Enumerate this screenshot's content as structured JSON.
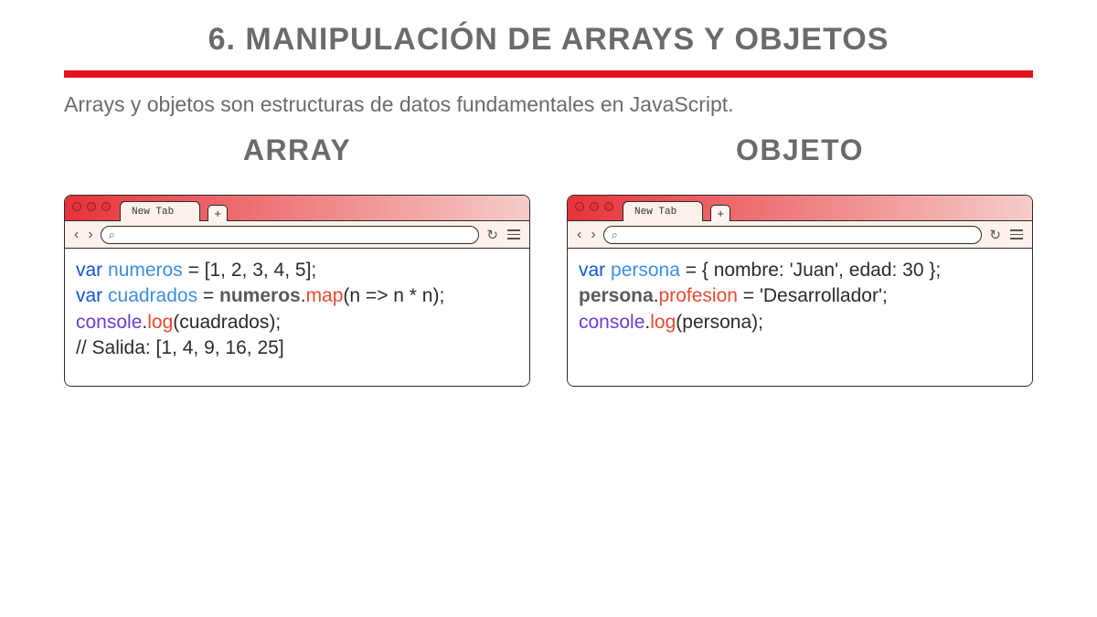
{
  "colors": {
    "accent_red": "#e8121b",
    "text_gray": "#6b6b6b",
    "border_dark": "#2b2b2b",
    "tabbar_gradient_start": "#e8323a",
    "tabbar_gradient_end": "#f6cdc8",
    "toolbar_bg": "#fdf1eb",
    "dot_fill": "#e8323a",
    "syntax_keyword": "#1256d4",
    "syntax_variable": "#3d8fe0",
    "syntax_function": "#e84a2e",
    "syntax_object": "#6b3fd1",
    "syntax_bold": "#5a5a5a"
  },
  "typography": {
    "title_fontsize": 34,
    "subtitle_fontsize": 23,
    "col_title_fontsize": 32,
    "code_fontsize": 21
  },
  "header": {
    "title": "6. MANIPULACIÓN DE ARRAYS Y OBJETOS",
    "subtitle": "Arrays y objetos son estructuras de datos fundamentales en JavaScript."
  },
  "columns": {
    "left": {
      "title": "ARRAY"
    },
    "right": {
      "title": "OBJETO"
    }
  },
  "browser_chrome": {
    "tab_label": "New Tab",
    "plus_label": "+",
    "back_glyph": "‹",
    "fwd_glyph": "›",
    "reload_glyph": "↻",
    "search_glyph": "⌕"
  },
  "code_left": {
    "lines": [
      [
        {
          "t": "var ",
          "cls": "kw"
        },
        {
          "t": "numeros ",
          "cls": "ident"
        },
        {
          "t": "= [1, 2, 3, 4, 5];",
          "cls": ""
        }
      ],
      [
        {
          "t": "var ",
          "cls": "kw"
        },
        {
          "t": "cuadrados ",
          "cls": "ident"
        },
        {
          "t": "= ",
          "cls": ""
        },
        {
          "t": "numeros",
          "cls": "bold"
        },
        {
          "t": ".",
          "cls": ""
        },
        {
          "t": "map",
          "cls": "fn"
        },
        {
          "t": "(n => n * n);",
          "cls": ""
        }
      ],
      [
        {
          "t": "console",
          "cls": "obj"
        },
        {
          "t": ".",
          "cls": ""
        },
        {
          "t": "log",
          "cls": "fn"
        },
        {
          "t": "(cuadrados);",
          "cls": ""
        }
      ],
      [
        {
          "t": " // Salida: [1, 4, 9, 16, 25]",
          "cls": "cmt"
        }
      ]
    ]
  },
  "code_right": {
    "lines": [
      [
        {
          "t": "var ",
          "cls": "kw"
        },
        {
          "t": "persona ",
          "cls": "ident"
        },
        {
          "t": "= { nombre: 'Juan', edad: 30 };",
          "cls": ""
        }
      ],
      [
        {
          "t": "persona",
          "cls": "bold"
        },
        {
          "t": ".",
          "cls": ""
        },
        {
          "t": "profesion ",
          "cls": "fn"
        },
        {
          "t": "= 'Desarrollador';",
          "cls": ""
        }
      ],
      [
        {
          "t": "console",
          "cls": "obj"
        },
        {
          "t": ".",
          "cls": ""
        },
        {
          "t": "log",
          "cls": "fn"
        },
        {
          "t": "(persona);",
          "cls": ""
        }
      ]
    ]
  }
}
